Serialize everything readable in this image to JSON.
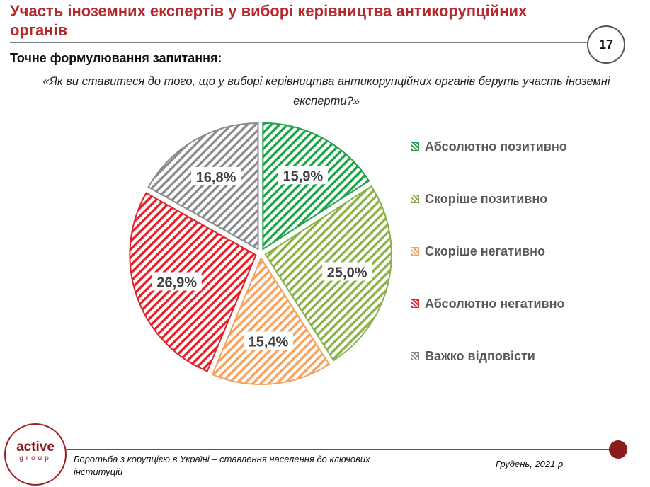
{
  "header": {
    "title": "Участь іноземних експертів у виборі керівництва антикорупційних органів",
    "page_number": "17"
  },
  "question": {
    "heading": "Точне формулювання запитання:",
    "text": "«Як ви ставитеся до того, що у виборі керівництва антикорупційних органів беруть участь іноземні експерти?»"
  },
  "chart_data": {
    "type": "pie",
    "slices": [
      {
        "label": "Абсолютно позитивно",
        "value": 15.9,
        "display": "15,9%",
        "color": "#1fa24a"
      },
      {
        "label": "Скоріше позитивно",
        "value": 25.0,
        "display": "25,0%",
        "color": "#8ab14a"
      },
      {
        "label": "Скоріше негативно",
        "value": 15.4,
        "display": "15,4%",
        "color": "#f4a25e"
      },
      {
        "label": "Абсолютно негативно",
        "value": 26.9,
        "display": "26,9%",
        "color": "#e0232a"
      },
      {
        "label": "Важко відповісти",
        "value": 16.8,
        "display": "16,8%",
        "color": "#8c8c8c"
      }
    ],
    "start": "12 o'clock",
    "direction": "clockwise",
    "fill": "diagonal hatch",
    "legend_position": "right"
  },
  "footer": {
    "logo_main": "active",
    "logo_sub": "group",
    "left_text": "Боротьба з корупцією в Україні – ставлення населення до ключових інституцій",
    "right_text": "Грудень, 2021 р."
  }
}
